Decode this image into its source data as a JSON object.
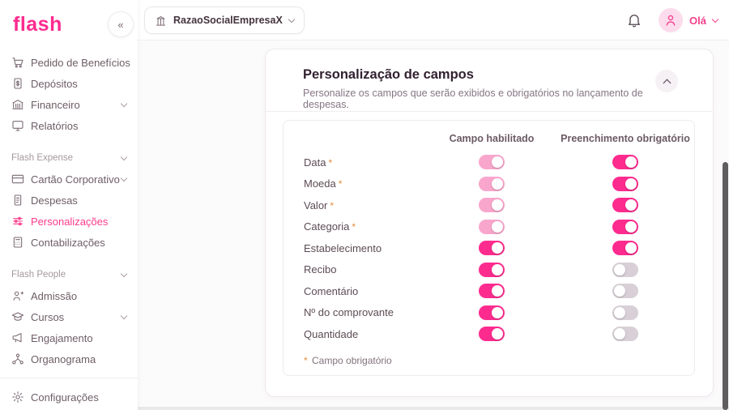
{
  "brand": {
    "logo_text": "flash",
    "accent_color": "#fe2b8f"
  },
  "topbar": {
    "company_selector": {
      "label": "RazaoSocialEmpresaX",
      "icon": "building-icon"
    },
    "bell_icon": "bell-icon",
    "user": {
      "greeting": "Olá",
      "avatar_icon": "person-icon"
    }
  },
  "sidebar": {
    "collapse_icon": "«",
    "sections": [
      {
        "label": null,
        "items": [
          {
            "label": "Pedido de Benefícios",
            "icon": "cart-icon",
            "chevron": false,
            "active": false
          },
          {
            "label": "Depósitos",
            "icon": "deposit-icon",
            "chevron": false,
            "active": false
          },
          {
            "label": "Financeiro",
            "icon": "bank-icon",
            "chevron": true,
            "active": false
          },
          {
            "label": "Relatórios",
            "icon": "monitor-icon",
            "chevron": false,
            "active": false
          }
        ]
      },
      {
        "label": "Flash Expense",
        "items": [
          {
            "label": "Cartão Corporativo",
            "icon": "card-icon",
            "chevron": true,
            "active": false
          },
          {
            "label": "Despesas",
            "icon": "receipt-icon",
            "chevron": false,
            "active": false
          },
          {
            "label": "Personalizações",
            "icon": "sliders-icon",
            "chevron": false,
            "active": true
          },
          {
            "label": "Contabilizações",
            "icon": "calculator-icon",
            "chevron": false,
            "active": false
          }
        ]
      },
      {
        "label": "Flash People",
        "items": [
          {
            "label": "Admissão",
            "icon": "user-plus-icon",
            "chevron": false,
            "active": false
          },
          {
            "label": "Cursos",
            "icon": "graduation-cap-icon",
            "chevron": true,
            "active": false
          },
          {
            "label": "Engajamento",
            "icon": "megaphone-icon",
            "chevron": false,
            "active": false
          },
          {
            "label": "Organograma",
            "icon": "org-chart-icon",
            "chevron": false,
            "active": false
          }
        ]
      },
      {
        "label": null,
        "divider_before": true,
        "items": [
          {
            "label": "Configurações",
            "icon": "gear-icon",
            "chevron": false,
            "active": false
          }
        ]
      }
    ]
  },
  "card": {
    "title": "Personalização de campos",
    "subtitle": "Personalize os campos que serão exibidos e obrigatórios no lançamento de despesas.",
    "collapse_icon": "chevron-up-icon",
    "table": {
      "columns": [
        "Campo habilitado",
        "Preenchimento obrigatório"
      ],
      "rows": [
        {
          "label": "Data",
          "required": true,
          "enabled_state": "on-locked",
          "mandatory_state": "on"
        },
        {
          "label": "Moeda",
          "required": true,
          "enabled_state": "on-locked",
          "mandatory_state": "on"
        },
        {
          "label": "Valor",
          "required": true,
          "enabled_state": "on-locked",
          "mandatory_state": "on"
        },
        {
          "label": "Categoria",
          "required": true,
          "enabled_state": "on-locked",
          "mandatory_state": "on"
        },
        {
          "label": "Estabelecimento",
          "required": false,
          "enabled_state": "on",
          "mandatory_state": "on"
        },
        {
          "label": "Recibo",
          "required": false,
          "enabled_state": "on",
          "mandatory_state": "off"
        },
        {
          "label": "Comentário",
          "required": false,
          "enabled_state": "on",
          "mandatory_state": "off"
        },
        {
          "label": "Nº do comprovante",
          "required": false,
          "enabled_state": "on",
          "mandatory_state": "off"
        },
        {
          "label": "Quantidade",
          "required": false,
          "enabled_state": "on",
          "mandatory_state": "off"
        }
      ],
      "required_marker": "*",
      "footnote": "Campo obrigatório"
    }
  },
  "colors": {
    "toggle_on": "#fe2b8f",
    "toggle_on_locked": "#f9a6cd",
    "toggle_off": "#d8d0d6",
    "required_marker": "#e98a3c"
  }
}
